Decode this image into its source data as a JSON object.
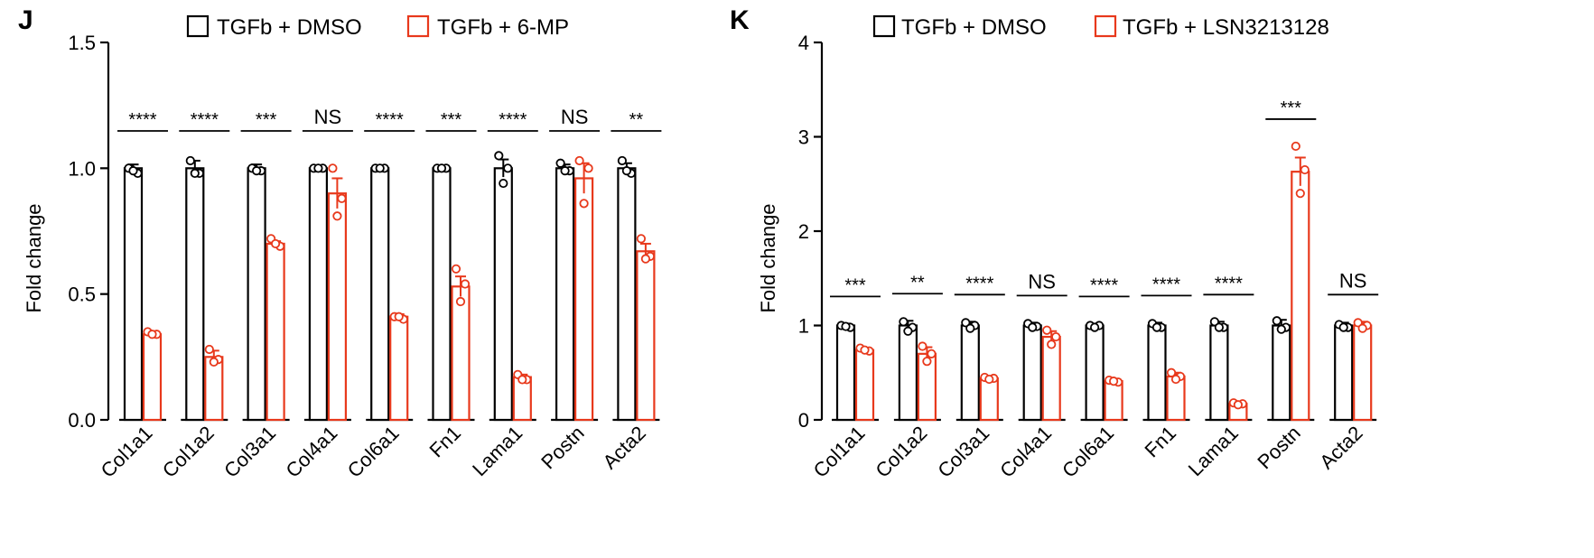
{
  "chart_data": [
    {
      "panel_label": "J",
      "type": "bar",
      "ylabel": "Fold change",
      "ylim": [
        0,
        1.5
      ],
      "yticks": [
        "0.0",
        "0.5",
        "1.0",
        "1.5"
      ],
      "ytick_values": [
        0,
        0.5,
        1.0,
        1.5
      ],
      "categories": [
        "Col1a1",
        "Col1a2",
        "Col3a1",
        "Col4a1",
        "Col6a1",
        "Fn1",
        "Lama1",
        "Postn",
        "Acta2"
      ],
      "series": [
        {
          "name": "TGFb + DMSO",
          "color": "#000000",
          "values": [
            1.0,
            1.0,
            1.0,
            1.0,
            1.0,
            1.0,
            1.0,
            1.0,
            1.0
          ],
          "sem": [
            0.015,
            0.03,
            0.015,
            0.008,
            0.01,
            0.006,
            0.035,
            0.015,
            0.02
          ],
          "points": [
            [
              1.0,
              0.98,
              0.99
            ],
            [
              1.03,
              0.98,
              0.98
            ],
            [
              1.0,
              0.99,
              0.99
            ],
            [
              1.0,
              1.0,
              1.0
            ],
            [
              1.0,
              1.0,
              1.0
            ],
            [
              1.0,
              1.0,
              1.0
            ],
            [
              1.05,
              1.0,
              0.94
            ],
            [
              1.02,
              0.99,
              0.99
            ],
            [
              1.03,
              0.98,
              0.99
            ]
          ]
        },
        {
          "name": "TGFb + 6-MP",
          "color": "#e8391c",
          "values": [
            0.34,
            0.25,
            0.7,
            0.9,
            0.41,
            0.53,
            0.17,
            0.96,
            0.67
          ],
          "sem": [
            0.01,
            0.025,
            0.01,
            0.06,
            0.01,
            0.04,
            0.01,
            0.06,
            0.03
          ],
          "points": [
            [
              0.35,
              0.34,
              0.34
            ],
            [
              0.28,
              0.24,
              0.23
            ],
            [
              0.72,
              0.69,
              0.7
            ],
            [
              1.0,
              0.88,
              0.81
            ],
            [
              0.41,
              0.4,
              0.41
            ],
            [
              0.6,
              0.54,
              0.47
            ],
            [
              0.18,
              0.16,
              0.16
            ],
            [
              1.03,
              1.0,
              0.86
            ],
            [
              0.72,
              0.65,
              0.64
            ]
          ]
        }
      ],
      "significance": [
        "****",
        "****",
        "***",
        "NS",
        "****",
        "***",
        "****",
        "NS",
        "**"
      ],
      "legend": [
        "TGFb + DMSO",
        "TGFb + 6-MP"
      ]
    },
    {
      "panel_label": "K",
      "type": "bar",
      "ylabel": "Fold change",
      "ylim": [
        0,
        4
      ],
      "yticks": [
        "0",
        "1",
        "2",
        "3",
        "4"
      ],
      "ytick_values": [
        0,
        1,
        2,
        3,
        4
      ],
      "categories": [
        "Col1a1",
        "Col1a2",
        "Col3a1",
        "Col4a1",
        "Col6a1",
        "Fn1",
        "Lama1",
        "Postn",
        "Acta2"
      ],
      "series": [
        {
          "name": "TGFb + DMSO",
          "color": "#000000",
          "values": [
            1.0,
            1.0,
            1.0,
            1.0,
            1.0,
            1.0,
            1.0,
            1.0,
            1.0
          ],
          "sem": [
            0.02,
            0.05,
            0.04,
            0.03,
            0.02,
            0.03,
            0.04,
            0.06,
            0.03
          ],
          "points": [
            [
              1.0,
              0.98,
              0.99
            ],
            [
              1.04,
              0.98,
              0.94
            ],
            [
              1.03,
              1.0,
              0.97
            ],
            [
              1.02,
              0.99,
              0.98
            ],
            [
              1.0,
              1.0,
              0.98
            ],
            [
              1.02,
              0.98,
              0.98
            ],
            [
              1.04,
              0.98,
              0.98
            ],
            [
              1.05,
              0.98,
              0.96
            ],
            [
              1.01,
              0.98,
              0.98
            ]
          ]
        },
        {
          "name": "TGFb + LSN3213128",
          "color": "#e8391c",
          "values": [
            0.74,
            0.7,
            0.44,
            0.88,
            0.41,
            0.46,
            0.17,
            2.63,
            1.0
          ],
          "sem": [
            0.02,
            0.07,
            0.02,
            0.06,
            0.02,
            0.04,
            0.02,
            0.15,
            0.04
          ],
          "points": [
            [
              0.76,
              0.73,
              0.74
            ],
            [
              0.78,
              0.7,
              0.62
            ],
            [
              0.45,
              0.44,
              0.43
            ],
            [
              0.95,
              0.88,
              0.8
            ],
            [
              0.42,
              0.4,
              0.41
            ],
            [
              0.5,
              0.46,
              0.43
            ],
            [
              0.18,
              0.17,
              0.16
            ],
            [
              2.9,
              2.65,
              2.4
            ],
            [
              1.03,
              1.0,
              0.97
            ]
          ]
        }
      ],
      "significance": [
        "***",
        "**",
        "****",
        "NS",
        "****",
        "****",
        "****",
        "***",
        "NS"
      ],
      "legend": [
        "TGFb + DMSO",
        "TGFb + LSN3213128"
      ]
    }
  ]
}
